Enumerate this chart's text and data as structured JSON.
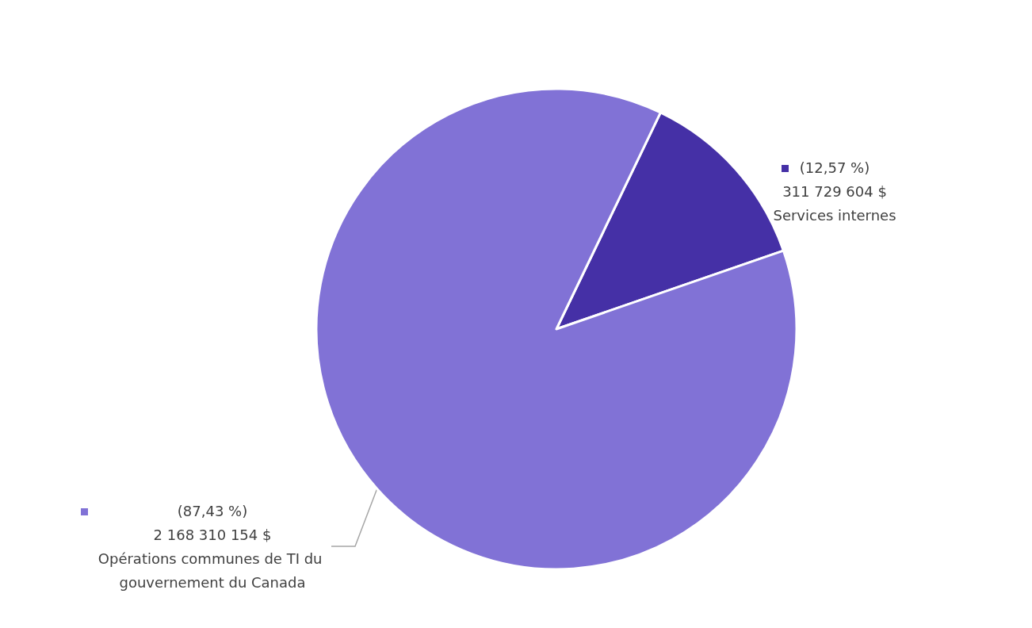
{
  "chart_data": {
    "type": "pie",
    "categories": [
      "Services internes",
      "Opérations communes de TI du gouvernement du Canada"
    ],
    "values": [
      311729604,
      2168310154
    ],
    "value_labels": [
      "(12,57 %)\n311 729 604 $",
      "(87,43 %)\n2 168 310 154 $"
    ],
    "colors": [
      "#4530a6",
      "#8172d6"
    ],
    "legend": false
  }
}
